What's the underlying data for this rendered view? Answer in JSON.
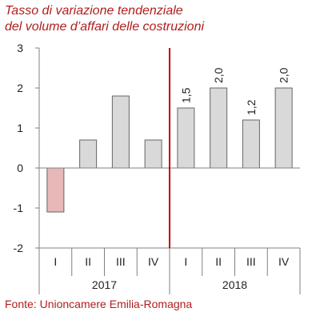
{
  "chart_data": {
    "type": "bar",
    "title": "Tasso di variazione tendenziale",
    "subtitle": "del volume d’affari delle costruzioni",
    "source": "Fonte: Unioncamere Emilia-Romagna",
    "categories": [
      "I",
      "II",
      "III",
      "IV",
      "I",
      "II",
      "III",
      "IV"
    ],
    "groups": [
      {
        "label": "2017",
        "categories": [
          "I",
          "II",
          "III",
          "IV"
        ]
      },
      {
        "label": "2018",
        "categories": [
          "I",
          "II",
          "III",
          "IV"
        ]
      }
    ],
    "values": [
      -1.1,
      0.7,
      1.8,
      0.7,
      1.5,
      2.0,
      1.2,
      2.0
    ],
    "data_labels": [
      "",
      "",
      "",
      "",
      "1,5",
      "2,0",
      "1,2",
      "2,0"
    ],
    "ylim": [
      -2,
      3
    ],
    "yticks": [
      "-2",
      "-1",
      "0",
      "1",
      "2",
      "3"
    ],
    "xlabel": "",
    "ylabel": "",
    "grid": false,
    "colors": {
      "positive": "#d9d9d9",
      "negative": "#e6b8b7",
      "bar_edge": "#666666",
      "divider": "#c00000",
      "title": "#b01e1e"
    }
  }
}
